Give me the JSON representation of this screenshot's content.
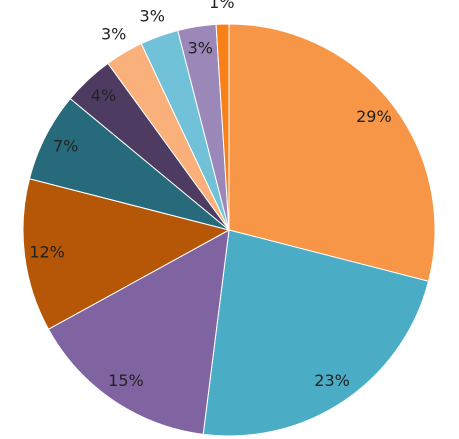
{
  "chart_data": {
    "type": "pie",
    "values": [
      29,
      23,
      15,
      12,
      7,
      4,
      3,
      3,
      3,
      1
    ],
    "value_labels": [
      "29%",
      "23%",
      "15%",
      "12%",
      "7%",
      "4%",
      "3%",
      "3%",
      "3%",
      "1%"
    ],
    "colors": [
      "#f79646",
      "#4bacc6",
      "#8064a2",
      "#b65708",
      "#276a7c",
      "#4d3b62",
      "#f9b07a",
      "#71c2d8",
      "#9c88b8",
      "#f88019"
    ]
  }
}
